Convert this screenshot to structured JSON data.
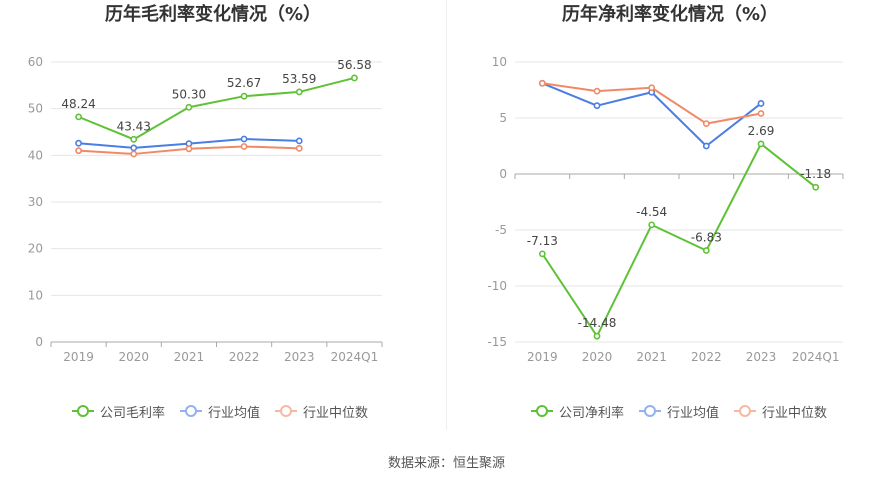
{
  "chart_data": [
    {
      "type": "line",
      "title": "历年毛利率变化情况（%）",
      "categories": [
        "2019",
        "2020",
        "2021",
        "2022",
        "2023",
        "2024Q1"
      ],
      "ylim": [
        0,
        60
      ],
      "yticks": [
        0,
        10,
        20,
        30,
        40,
        50,
        60
      ],
      "legend": "bottom",
      "series": [
        {
          "name": "公司毛利率",
          "color": "#5fc236",
          "show_labels": true,
          "values": [
            48.24,
            43.43,
            50.3,
            52.67,
            53.59,
            56.58
          ]
        },
        {
          "name": "行业均值",
          "color": "#4a7ee3",
          "values": [
            42.6,
            41.6,
            42.5,
            43.5,
            43.1,
            null
          ]
        },
        {
          "name": "行业中位数",
          "color": "#f08a66",
          "values": [
            41.0,
            40.3,
            41.4,
            41.9,
            41.5,
            null
          ]
        }
      ]
    },
    {
      "type": "line",
      "title": "历年净利率变化情况（%）",
      "categories": [
        "2019",
        "2020",
        "2021",
        "2022",
        "2023",
        "2024Q1"
      ],
      "ylim": [
        -15,
        10
      ],
      "yticks": [
        -15,
        -10,
        -5,
        0,
        5,
        10
      ],
      "legend": "bottom",
      "series": [
        {
          "name": "公司净利率",
          "color": "#5fc236",
          "show_labels": true,
          "values": [
            -7.13,
            -14.48,
            -4.54,
            -6.83,
            2.69,
            -1.18
          ]
        },
        {
          "name": "行业均值",
          "color": "#4a7ee3",
          "values": [
            8.1,
            6.1,
            7.3,
            2.5,
            6.3,
            null
          ]
        },
        {
          "name": "行业中位数",
          "color": "#f08a66",
          "values": [
            8.1,
            7.4,
            7.7,
            4.5,
            5.4,
            null
          ]
        }
      ]
    }
  ],
  "footer": {
    "source": "数据来源：恒生聚源"
  }
}
